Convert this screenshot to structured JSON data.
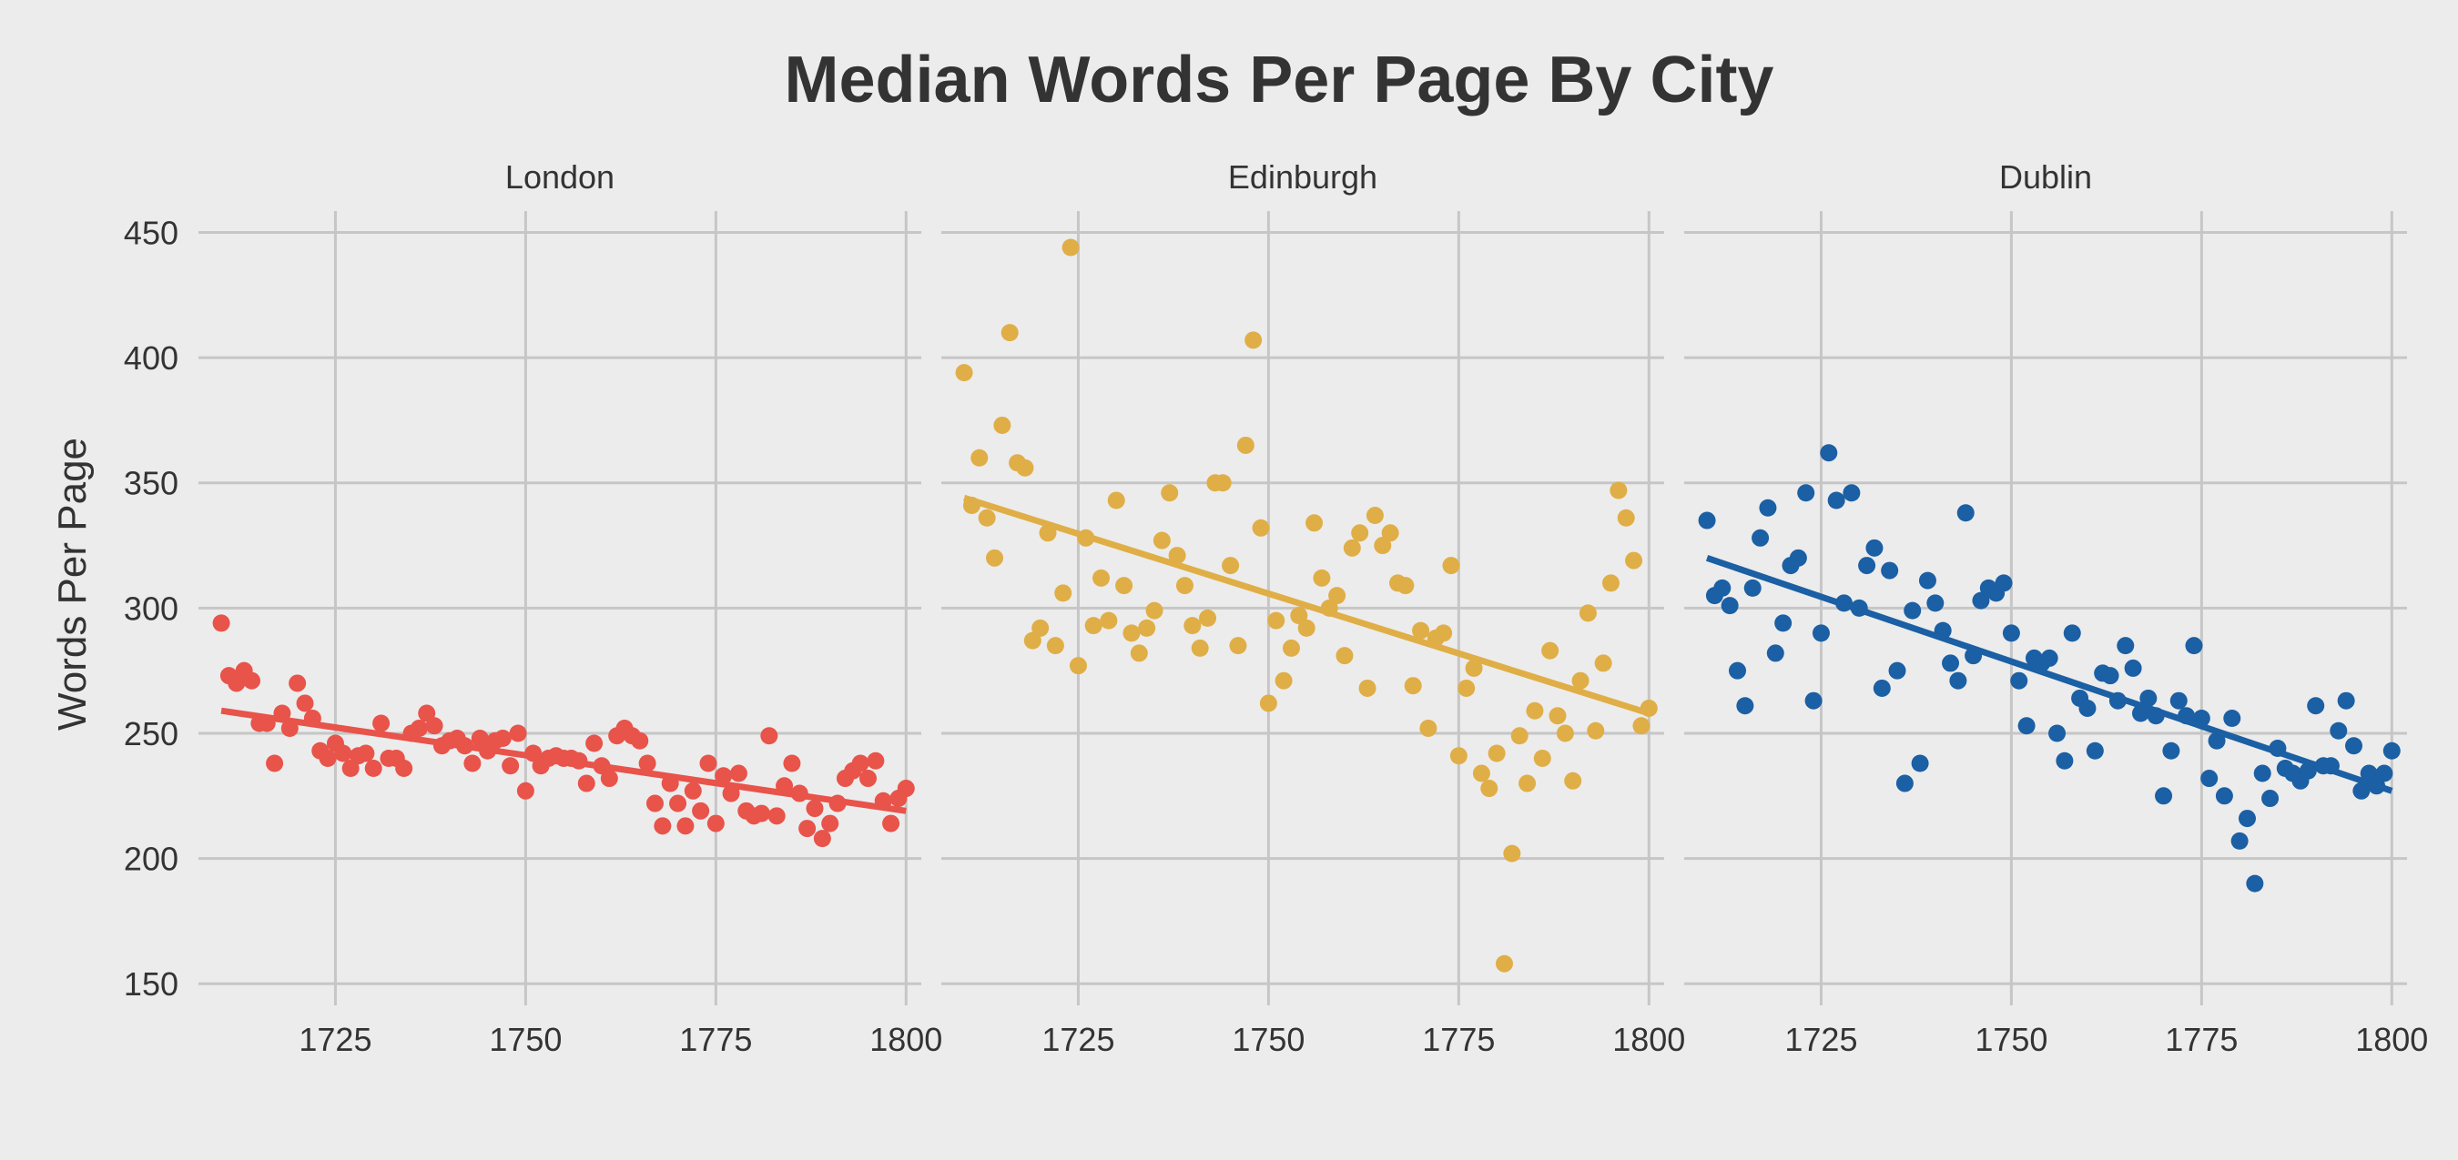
{
  "chart_data": {
    "type": "scatter",
    "title": "Median Words Per Page By City",
    "ylabel": "Words Per Page",
    "xlabel": "",
    "xlim": [
      1707,
      1802
    ],
    "ylim": [
      145,
      452
    ],
    "xticks": [
      1725,
      1750,
      1775,
      1800
    ],
    "yticks": [
      150,
      200,
      250,
      300,
      350,
      400,
      450
    ],
    "grid": true,
    "legend": "none",
    "trend_lines": true,
    "panels": [
      {
        "name": "London",
        "color": "#e8534a",
        "trend": [
          [
            1710,
            259
          ],
          [
            1800,
            219
          ]
        ],
        "points": [
          [
            1710,
            294
          ],
          [
            1711,
            273
          ],
          [
            1712,
            270
          ],
          [
            1713,
            275
          ],
          [
            1714,
            271
          ],
          [
            1715,
            254
          ],
          [
            1716,
            254
          ],
          [
            1717,
            238
          ],
          [
            1718,
            258
          ],
          [
            1719,
            252
          ],
          [
            1720,
            270
          ],
          [
            1721,
            262
          ],
          [
            1722,
            256
          ],
          [
            1723,
            243
          ],
          [
            1724,
            240
          ],
          [
            1725,
            246
          ],
          [
            1726,
            242
          ],
          [
            1727,
            236
          ],
          [
            1728,
            241
          ],
          [
            1729,
            242
          ],
          [
            1730,
            236
          ],
          [
            1731,
            254
          ],
          [
            1732,
            240
          ],
          [
            1733,
            240
          ],
          [
            1734,
            236
          ],
          [
            1735,
            250
          ],
          [
            1736,
            252
          ],
          [
            1737,
            258
          ],
          [
            1738,
            253
          ],
          [
            1739,
            245
          ],
          [
            1740,
            247
          ],
          [
            1741,
            248
          ],
          [
            1742,
            245
          ],
          [
            1743,
            238
          ],
          [
            1744,
            248
          ],
          [
            1745,
            243
          ],
          [
            1746,
            247
          ],
          [
            1747,
            248
          ],
          [
            1748,
            237
          ],
          [
            1749,
            250
          ],
          [
            1750,
            227
          ],
          [
            1751,
            242
          ],
          [
            1752,
            237
          ],
          [
            1753,
            240
          ],
          [
            1754,
            241
          ],
          [
            1755,
            240
          ],
          [
            1756,
            240
          ],
          [
            1757,
            239
          ],
          [
            1758,
            230
          ],
          [
            1759,
            246
          ],
          [
            1760,
            237
          ],
          [
            1761,
            232
          ],
          [
            1762,
            249
          ],
          [
            1763,
            252
          ],
          [
            1764,
            249
          ],
          [
            1765,
            247
          ],
          [
            1766,
            238
          ],
          [
            1767,
            222
          ],
          [
            1768,
            213
          ],
          [
            1769,
            230
          ],
          [
            1770,
            222
          ],
          [
            1771,
            213
          ],
          [
            1772,
            227
          ],
          [
            1773,
            219
          ],
          [
            1774,
            238
          ],
          [
            1775,
            214
          ],
          [
            1776,
            233
          ],
          [
            1777,
            226
          ],
          [
            1778,
            234
          ],
          [
            1779,
            219
          ],
          [
            1780,
            217
          ],
          [
            1781,
            218
          ],
          [
            1782,
            249
          ],
          [
            1783,
            217
          ],
          [
            1784,
            229
          ],
          [
            1785,
            238
          ],
          [
            1786,
            226
          ],
          [
            1787,
            212
          ],
          [
            1788,
            220
          ],
          [
            1789,
            208
          ],
          [
            1790,
            214
          ],
          [
            1791,
            222
          ],
          [
            1792,
            232
          ],
          [
            1793,
            235
          ],
          [
            1794,
            238
          ],
          [
            1795,
            232
          ],
          [
            1796,
            239
          ],
          [
            1797,
            223
          ],
          [
            1798,
            214
          ],
          [
            1799,
            224
          ],
          [
            1800,
            228
          ]
        ]
      },
      {
        "name": "Edinburgh",
        "color": "#e0ae46",
        "trend": [
          [
            1710,
            344
          ],
          [
            1800,
            258
          ]
        ],
        "points": [
          [
            1710,
            394
          ],
          [
            1711,
            341
          ],
          [
            1712,
            360
          ],
          [
            1713,
            336
          ],
          [
            1714,
            320
          ],
          [
            1715,
            373
          ],
          [
            1716,
            410
          ],
          [
            1717,
            358
          ],
          [
            1718,
            356
          ],
          [
            1719,
            287
          ],
          [
            1720,
            292
          ],
          [
            1721,
            330
          ],
          [
            1722,
            285
          ],
          [
            1723,
            306
          ],
          [
            1724,
            444
          ],
          [
            1725,
            277
          ],
          [
            1726,
            328
          ],
          [
            1727,
            293
          ],
          [
            1728,
            312
          ],
          [
            1729,
            295
          ],
          [
            1730,
            343
          ],
          [
            1731,
            309
          ],
          [
            1732,
            290
          ],
          [
            1733,
            282
          ],
          [
            1734,
            292
          ],
          [
            1735,
            299
          ],
          [
            1736,
            327
          ],
          [
            1737,
            346
          ],
          [
            1738,
            321
          ],
          [
            1739,
            309
          ],
          [
            1740,
            293
          ],
          [
            1741,
            284
          ],
          [
            1742,
            296
          ],
          [
            1743,
            350
          ],
          [
            1744,
            350
          ],
          [
            1745,
            317
          ],
          [
            1746,
            285
          ],
          [
            1747,
            365
          ],
          [
            1748,
            407
          ],
          [
            1749,
            332
          ],
          [
            1750,
            262
          ],
          [
            1751,
            295
          ],
          [
            1752,
            271
          ],
          [
            1753,
            284
          ],
          [
            1754,
            297
          ],
          [
            1755,
            292
          ],
          [
            1756,
            334
          ],
          [
            1757,
            312
          ],
          [
            1758,
            300
          ],
          [
            1759,
            305
          ],
          [
            1760,
            281
          ],
          [
            1761,
            324
          ],
          [
            1762,
            330
          ],
          [
            1763,
            268
          ],
          [
            1764,
            337
          ],
          [
            1765,
            325
          ],
          [
            1766,
            330
          ],
          [
            1767,
            310
          ],
          [
            1768,
            309
          ],
          [
            1769,
            269
          ],
          [
            1770,
            291
          ],
          [
            1771,
            252
          ],
          [
            1772,
            288
          ],
          [
            1773,
            290
          ],
          [
            1774,
            317
          ],
          [
            1775,
            241
          ],
          [
            1776,
            268
          ],
          [
            1777,
            276
          ],
          [
            1778,
            234
          ],
          [
            1779,
            228
          ],
          [
            1780,
            242
          ],
          [
            1781,
            158
          ],
          [
            1782,
            202
          ],
          [
            1783,
            249
          ],
          [
            1784,
            230
          ],
          [
            1785,
            259
          ],
          [
            1786,
            240
          ],
          [
            1787,
            283
          ],
          [
            1788,
            257
          ],
          [
            1789,
            250
          ],
          [
            1790,
            231
          ],
          [
            1791,
            271
          ],
          [
            1792,
            298
          ],
          [
            1793,
            251
          ],
          [
            1794,
            278
          ],
          [
            1795,
            310
          ],
          [
            1796,
            347
          ],
          [
            1797,
            336
          ],
          [
            1798,
            319
          ],
          [
            1799,
            253
          ],
          [
            1800,
            260
          ]
        ]
      },
      {
        "name": "Dublin",
        "color": "#1b5fa4",
        "trend": [
          [
            1710,
            320
          ],
          [
            1800,
            227
          ]
        ],
        "points": [
          [
            1710,
            335
          ],
          [
            1711,
            305
          ],
          [
            1712,
            308
          ],
          [
            1713,
            301
          ],
          [
            1714,
            275
          ],
          [
            1715,
            261
          ],
          [
            1716,
            308
          ],
          [
            1717,
            328
          ],
          [
            1718,
            340
          ],
          [
            1719,
            282
          ],
          [
            1720,
            294
          ],
          [
            1721,
            317
          ],
          [
            1722,
            320
          ],
          [
            1723,
            346
          ],
          [
            1724,
            263
          ],
          [
            1725,
            290
          ],
          [
            1726,
            362
          ],
          [
            1727,
            343
          ],
          [
            1728,
            302
          ],
          [
            1729,
            346
          ],
          [
            1730,
            300
          ],
          [
            1731,
            317
          ],
          [
            1732,
            324
          ],
          [
            1733,
            268
          ],
          [
            1734,
            315
          ],
          [
            1735,
            275
          ],
          [
            1736,
            230
          ],
          [
            1737,
            299
          ],
          [
            1738,
            238
          ],
          [
            1739,
            311
          ],
          [
            1740,
            302
          ],
          [
            1741,
            291
          ],
          [
            1742,
            278
          ],
          [
            1743,
            271
          ],
          [
            1744,
            338
          ],
          [
            1745,
            281
          ],
          [
            1746,
            303
          ],
          [
            1747,
            308
          ],
          [
            1748,
            306
          ],
          [
            1749,
            310
          ],
          [
            1750,
            290
          ],
          [
            1751,
            271
          ],
          [
            1752,
            253
          ],
          [
            1753,
            280
          ],
          [
            1754,
            278
          ],
          [
            1755,
            280
          ],
          [
            1756,
            250
          ],
          [
            1757,
            239
          ],
          [
            1758,
            290
          ],
          [
            1759,
            264
          ],
          [
            1760,
            260
          ],
          [
            1761,
            243
          ],
          [
            1762,
            274
          ],
          [
            1763,
            273
          ],
          [
            1764,
            263
          ],
          [
            1765,
            285
          ],
          [
            1766,
            276
          ],
          [
            1767,
            258
          ],
          [
            1768,
            264
          ],
          [
            1769,
            257
          ],
          [
            1770,
            225
          ],
          [
            1771,
            243
          ],
          [
            1772,
            263
          ],
          [
            1773,
            257
          ],
          [
            1774,
            285
          ],
          [
            1775,
            256
          ],
          [
            1776,
            232
          ],
          [
            1777,
            247
          ],
          [
            1778,
            225
          ],
          [
            1779,
            256
          ],
          [
            1780,
            207
          ],
          [
            1781,
            216
          ],
          [
            1782,
            190
          ],
          [
            1783,
            234
          ],
          [
            1784,
            224
          ],
          [
            1785,
            244
          ],
          [
            1786,
            236
          ],
          [
            1787,
            234
          ],
          [
            1788,
            231
          ],
          [
            1789,
            235
          ],
          [
            1790,
            261
          ],
          [
            1791,
            237
          ],
          [
            1792,
            237
          ],
          [
            1793,
            251
          ],
          [
            1794,
            263
          ],
          [
            1795,
            245
          ],
          [
            1796,
            227
          ],
          [
            1797,
            234
          ],
          [
            1798,
            229
          ],
          [
            1799,
            234
          ],
          [
            1800,
            243
          ]
        ]
      }
    ]
  }
}
